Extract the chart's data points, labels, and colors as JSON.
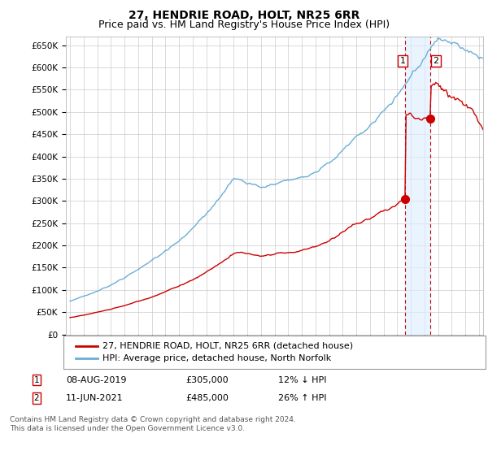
{
  "title": "27, HENDRIE ROAD, HOLT, NR25 6RR",
  "subtitle": "Price paid vs. HM Land Registry's House Price Index (HPI)",
  "ylim": [
    0,
    670000
  ],
  "yticks": [
    0,
    50000,
    100000,
    150000,
    200000,
    250000,
    300000,
    350000,
    400000,
    450000,
    500000,
    550000,
    600000,
    650000
  ],
  "ytick_labels": [
    "£0",
    "£50K",
    "£100K",
    "£150K",
    "£200K",
    "£250K",
    "£300K",
    "£350K",
    "£400K",
    "£450K",
    "£500K",
    "£550K",
    "£600K",
    "£650K"
  ],
  "hpi_color": "#6baed6",
  "price_color": "#cc0000",
  "marker_color": "#cc0000",
  "vline_color": "#cc0000",
  "shade_color": "#ddeeff",
  "bg_color": "#ffffff",
  "plot_bg": "#ffffff",
  "grid_color": "#cccccc",
  "legend_label_red": "27, HENDRIE ROAD, HOLT, NR25 6RR (detached house)",
  "legend_label_blue": "HPI: Average price, detached house, North Norfolk",
  "sale1_date": "08-AUG-2019",
  "sale1_price": 305000,
  "sale1_pct": "12% ↓ HPI",
  "sale2_date": "11-JUN-2021",
  "sale2_price": 485000,
  "sale2_pct": "26% ↑ HPI",
  "copyright": "Contains HM Land Registry data © Crown copyright and database right 2024.\nThis data is licensed under the Open Government Licence v3.0.",
  "x_start_year": 1995,
  "x_end_year": 2025,
  "sale1_x": 2019.59,
  "sale2_x": 2021.44,
  "title_fontsize": 10,
  "subtitle_fontsize": 9,
  "tick_fontsize": 7.5,
  "legend_fontsize": 8,
  "anno_fontsize": 8
}
